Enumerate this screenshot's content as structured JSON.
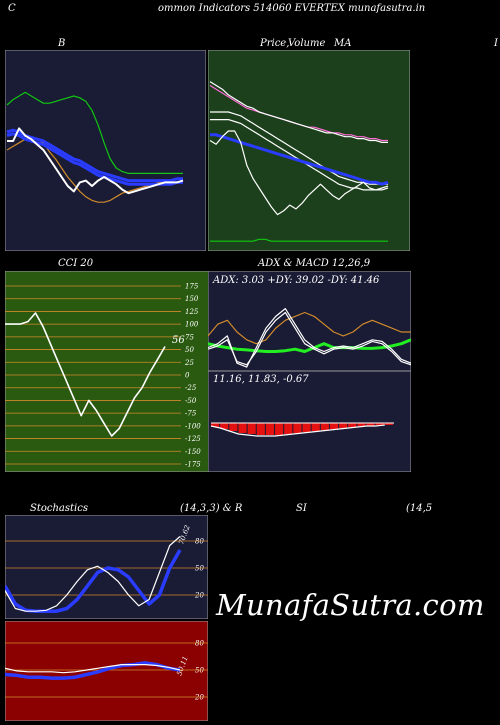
{
  "header": {
    "left_char": "C",
    "title": "ommon  Indicators 514060  EVERTEX  munafasutra.in"
  },
  "titles": {
    "bb": "B",
    "price": "Price,",
    "price_overlap": "Volume",
    "price_overlap2": "MA",
    "right_char": "I",
    "cci": "CCI 20",
    "adx": "ADX  & MACD 12,26,9",
    "stoch": "Stochastics",
    "stoch_params": "(14,3,3) & R",
    "si": "SI",
    "si_params": "(14,5"
  },
  "brand": "MunafaSutra.com",
  "colors": {
    "dark_panel": "#1a1b35",
    "green_panel": "#1c401c",
    "cci_panel": "#2a5a10",
    "rsi_panel": "#8b0000",
    "orange": "#d08a2a",
    "blue": "#2a3cff",
    "green_line": "#10c810",
    "bright_green": "#22ee22",
    "pink": "#ff6ad5",
    "red_bar": "#e51010"
  },
  "chart_data": [
    {
      "id": "bollinger",
      "type": "line",
      "title": "B",
      "x_count": 30,
      "ylim": [
        0,
        100
      ],
      "series": [
        {
          "color": "green",
          "values": [
            75,
            78,
            80,
            82,
            80,
            78,
            76,
            76,
            77,
            78,
            79,
            80,
            79,
            77,
            72,
            64,
            54,
            45,
            40,
            38,
            37,
            37,
            37,
            37,
            37,
            37,
            37,
            37,
            37,
            37
          ]
        },
        {
          "color": "orange",
          "values": [
            50,
            52,
            54,
            56,
            57,
            56,
            54,
            49,
            45,
            40,
            35,
            31,
            27,
            24,
            22,
            21,
            21,
            22,
            24,
            26,
            27,
            28,
            29,
            30,
            31,
            32,
            32,
            32,
            32,
            32
          ]
        },
        {
          "color": "blue",
          "values": [
            60,
            61,
            60,
            58,
            57,
            56,
            55,
            53,
            51,
            49,
            47,
            45,
            44,
            42,
            40,
            38,
            37,
            36,
            35,
            34,
            33,
            33,
            33,
            33,
            33,
            33,
            33,
            33,
            34,
            34
          ]
        },
        {
          "color": "blue",
          "values": [
            58,
            59,
            58,
            56,
            55,
            54,
            53,
            51,
            49,
            47,
            45,
            43,
            42,
            40,
            38,
            36,
            35,
            34,
            33,
            32,
            31,
            31,
            31,
            31,
            31,
            31,
            31,
            31,
            32,
            32
          ]
        },
        {
          "color": "white",
          "values": [
            55,
            55,
            62,
            58,
            56,
            53,
            50,
            45,
            40,
            35,
            30,
            27,
            32,
            33,
            30,
            33,
            35,
            33,
            31,
            28,
            26,
            27,
            28,
            29,
            30,
            31,
            32,
            32,
            32,
            33
          ]
        }
      ]
    },
    {
      "id": "price_ma",
      "type": "line",
      "title": "Price,  Volume  MA",
      "x_count": 30,
      "ylim": [
        0,
        100
      ],
      "series": [
        {
          "color": "pink",
          "values": [
            84,
            82,
            80,
            78,
            76,
            74,
            72,
            71,
            70,
            69,
            68,
            67,
            66,
            65,
            64,
            63,
            62,
            62,
            61,
            60,
            59,
            59,
            58,
            58,
            57,
            57,
            56,
            56,
            55,
            55
          ]
        },
        {
          "color": "white",
          "values": [
            86,
            84,
            82,
            79,
            77,
            75,
            73,
            72,
            70,
            69,
            68,
            67,
            66,
            65,
            64,
            63,
            62,
            61,
            60,
            59,
            59,
            58,
            57,
            57,
            56,
            56,
            55,
            55,
            54,
            54
          ]
        },
        {
          "color": "white",
          "values": [
            70,
            70,
            70,
            70,
            69,
            68,
            66,
            64,
            62,
            60,
            58,
            56,
            54,
            52,
            50,
            48,
            46,
            44,
            42,
            40,
            38,
            36,
            35,
            34,
            33,
            33,
            32,
            32,
            32,
            32
          ]
        },
        {
          "color": "white",
          "values": [
            66,
            66,
            66,
            66,
            65,
            64,
            62,
            60,
            58,
            56,
            54,
            52,
            50,
            48,
            46,
            44,
            42,
            40,
            38,
            36,
            34,
            32,
            31,
            30,
            30,
            29,
            29,
            29,
            29,
            30
          ]
        },
        {
          "color": "blue",
          "values": [
            58,
            58,
            57,
            56,
            55,
            54,
            53,
            52,
            51,
            50,
            49,
            48,
            47,
            46,
            45,
            44,
            43,
            42,
            41,
            40,
            39,
            38,
            37,
            36,
            35,
            34,
            33,
            33,
            32,
            33
          ]
        },
        {
          "color": "white",
          "values": [
            55,
            53,
            57,
            60,
            60,
            54,
            42,
            35,
            30,
            25,
            20,
            16,
            18,
            21,
            19,
            22,
            26,
            29,
            32,
            29,
            26,
            24,
            27,
            29,
            31,
            33,
            30,
            29,
            30,
            31
          ]
        },
        {
          "color": "green",
          "values": [
            2,
            2,
            2,
            2,
            2,
            2,
            2,
            2,
            3,
            3,
            2,
            2,
            2,
            2,
            2,
            2,
            2,
            2,
            2,
            2,
            2,
            2,
            2,
            2,
            2,
            2,
            2,
            2,
            2,
            2
          ]
        }
      ]
    },
    {
      "id": "cci",
      "type": "line",
      "title": "CCI 20",
      "ylim": [
        -175,
        175
      ],
      "y_ticks": [
        175,
        150,
        125,
        100,
        75,
        50,
        25,
        0,
        -25,
        -50,
        -75,
        -100,
        -125,
        -150,
        -175
      ],
      "last_value": "56",
      "values": [
        100,
        100,
        100,
        105,
        122,
        95,
        60,
        25,
        -10,
        -45,
        -80,
        -50,
        -70,
        -95,
        -120,
        -105,
        -75,
        -45,
        -25,
        5,
        30,
        56
      ]
    },
    {
      "id": "adx",
      "type": "line",
      "title": "ADX  & MACD 12,26,9",
      "readout": "ADX: 3.03  +DY: 39.02  -DY: 41.46",
      "ylim": [
        0,
        100
      ],
      "series": [
        {
          "color": "orange",
          "values": [
            45,
            60,
            65,
            50,
            40,
            35,
            40,
            55,
            65,
            70,
            75,
            70,
            60,
            50,
            45,
            50,
            60,
            65,
            60,
            55,
            50,
            50
          ]
        },
        {
          "color": "bright_green",
          "values": [
            35,
            32,
            30,
            28,
            27,
            26,
            25,
            25,
            26,
            28,
            25,
            30,
            35,
            30,
            30,
            30,
            29,
            29,
            30,
            32,
            35,
            40
          ]
        },
        {
          "color": "white",
          "values": [
            30,
            35,
            45,
            10,
            5,
            30,
            55,
            70,
            80,
            60,
            40,
            30,
            25,
            30,
            32,
            30,
            35,
            40,
            38,
            28,
            15,
            10
          ]
        },
        {
          "color": "white",
          "values": [
            28,
            32,
            40,
            12,
            8,
            25,
            50,
            65,
            75,
            55,
            35,
            28,
            22,
            28,
            30,
            28,
            32,
            38,
            35,
            25,
            12,
            8
          ]
        }
      ]
    },
    {
      "id": "macd",
      "type": "bar",
      "readout": "11.16,  11.83,  -0.67",
      "values": [
        -0.4,
        -0.6,
        -0.8,
        -1.0,
        -1.1,
        -1.2,
        -1.2,
        -1.2,
        -1.1,
        -1.0,
        -0.9,
        -0.8,
        -0.7,
        -0.6,
        -0.5,
        -0.4,
        -0.3,
        -0.3,
        -0.2,
        -0.2
      ]
    },
    {
      "id": "stochastics",
      "type": "line",
      "title": "Stochastics (14,3,3)",
      "ylim": [
        0,
        100
      ],
      "y_ticks": [
        80,
        50,
        20
      ],
      "last_label": "70.62",
      "series": [
        {
          "color": "blue",
          "values": [
            30,
            10,
            3,
            2,
            2,
            2,
            5,
            15,
            30,
            45,
            50,
            48,
            40,
            25,
            10,
            20,
            50,
            70
          ]
        },
        {
          "color": "white",
          "values": [
            25,
            5,
            2,
            2,
            3,
            8,
            20,
            35,
            48,
            52,
            45,
            35,
            20,
            8,
            15,
            45,
            75,
            85
          ]
        }
      ]
    },
    {
      "id": "rsi",
      "type": "line",
      "title": "SI (14,5",
      "ylim": [
        0,
        100
      ],
      "y_ticks": [
        80,
        50,
        20
      ],
      "last_label": "50.11",
      "series": [
        {
          "color": "blue",
          "values": [
            45,
            44,
            42,
            42,
            41,
            41,
            42,
            45,
            48,
            52,
            55,
            56,
            58,
            56,
            52,
            50
          ]
        },
        {
          "color": "white",
          "values": [
            52,
            49,
            48,
            48,
            48,
            47,
            48,
            50,
            52,
            54,
            56,
            56,
            56,
            55,
            53,
            50
          ]
        }
      ]
    }
  ]
}
